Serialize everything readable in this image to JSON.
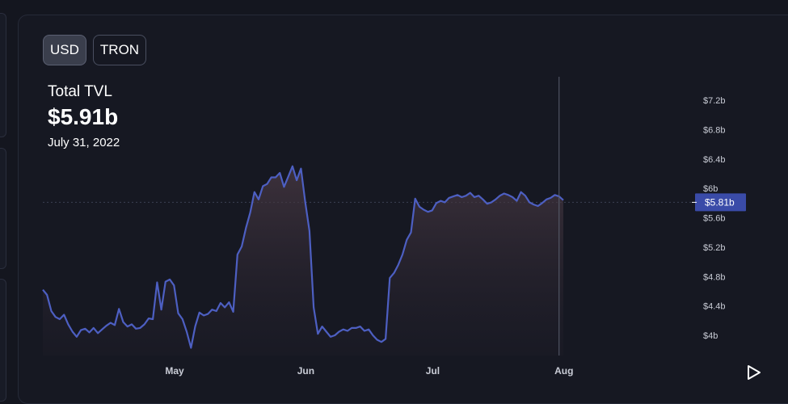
{
  "toggle": {
    "usd_label": "USD",
    "tron_label": "TRON"
  },
  "summary": {
    "label": "Total TVL",
    "value": "$5.91b",
    "date": "July 31, 2022"
  },
  "colors": {
    "line": "#4d5fc2",
    "badge": "#3a4ba8",
    "background": "#161822"
  },
  "icons": {
    "play": "play-icon"
  },
  "chart_data": {
    "type": "area",
    "title": "",
    "xlabel": "",
    "ylabel": "",
    "x_tick_labels": [
      "May",
      "Jun",
      "Jul",
      "Aug"
    ],
    "x_tick_days": [
      30,
      61,
      91,
      122
    ],
    "y_tick_labels": [
      "$4b",
      "$4.4b",
      "$4.8b",
      "$5.2b",
      "$5.6b",
      "$6b",
      "$6.4b",
      "$6.8b",
      "$7.2b"
    ],
    "y_tick_values": [
      4.0,
      4.4,
      4.8,
      5.2,
      5.6,
      6.0,
      6.4,
      6.8,
      7.2
    ],
    "ylim": [
      3.75,
      7.45
    ],
    "current_value": 5.81,
    "current_label": "$5.81b",
    "crosshair_day": 122,
    "grid": false,
    "series": [
      {
        "name": "",
        "days": [
          0,
          1,
          2,
          3,
          4,
          5,
          6,
          7,
          8,
          9,
          10,
          11,
          12,
          13,
          14,
          15,
          16,
          17,
          18,
          19,
          20,
          21,
          22,
          23,
          24,
          25,
          26,
          27,
          28,
          29,
          30,
          31,
          32,
          33,
          34,
          35,
          36,
          37,
          38,
          39,
          40,
          41,
          42,
          43,
          44,
          45,
          46,
          47,
          48,
          49,
          50,
          51,
          52,
          53,
          54,
          55,
          56,
          57,
          58,
          59,
          60,
          61,
          62,
          63,
          64,
          65,
          66,
          67,
          68,
          69,
          70,
          71,
          72,
          73,
          74,
          75,
          76,
          77,
          78,
          79,
          80,
          81,
          82,
          83,
          84,
          85,
          86,
          87,
          88,
          89,
          90,
          91,
          92,
          93,
          94,
          95,
          96,
          97,
          98,
          99,
          100,
          101,
          102,
          103,
          104,
          105,
          106,
          107,
          108,
          109,
          110,
          111,
          112,
          113,
          114,
          115,
          116,
          117,
          118,
          119,
          120,
          121,
          122,
          123
        ],
        "values": [
          4.62,
          4.55,
          4.33,
          4.25,
          4.22,
          4.28,
          4.15,
          4.05,
          3.98,
          4.07,
          4.09,
          4.04,
          4.1,
          4.03,
          4.08,
          4.13,
          4.17,
          4.14,
          4.36,
          4.18,
          4.12,
          4.15,
          4.09,
          4.1,
          4.15,
          4.23,
          4.22,
          4.72,
          4.35,
          4.73,
          4.76,
          4.68,
          4.3,
          4.22,
          4.05,
          3.83,
          4.12,
          4.31,
          4.27,
          4.29,
          4.35,
          4.33,
          4.44,
          4.38,
          4.45,
          4.32,
          5.1,
          5.21,
          5.46,
          5.67,
          5.95,
          5.85,
          6.03,
          6.06,
          6.15,
          6.15,
          6.21,
          6.02,
          6.16,
          6.3,
          6.11,
          6.27,
          5.82,
          5.42,
          4.38,
          4.02,
          4.12,
          4.05,
          3.98,
          4.0,
          4.05,
          4.08,
          4.06,
          4.1,
          4.1,
          4.12,
          4.06,
          4.08,
          4.0,
          3.94,
          3.91,
          3.95,
          4.78,
          4.85,
          4.96,
          5.1,
          5.3,
          5.4,
          5.86,
          5.75,
          5.71,
          5.68,
          5.7,
          5.8,
          5.83,
          5.81,
          5.87,
          5.89,
          5.91,
          5.88,
          5.9,
          5.94,
          5.88,
          5.9,
          5.85,
          5.79,
          5.81,
          5.85,
          5.9,
          5.93,
          5.91,
          5.88,
          5.83,
          5.95,
          5.9,
          5.81,
          5.78,
          5.76,
          5.8,
          5.85,
          5.87,
          5.91,
          5.89,
          5.84
        ]
      }
    ]
  }
}
